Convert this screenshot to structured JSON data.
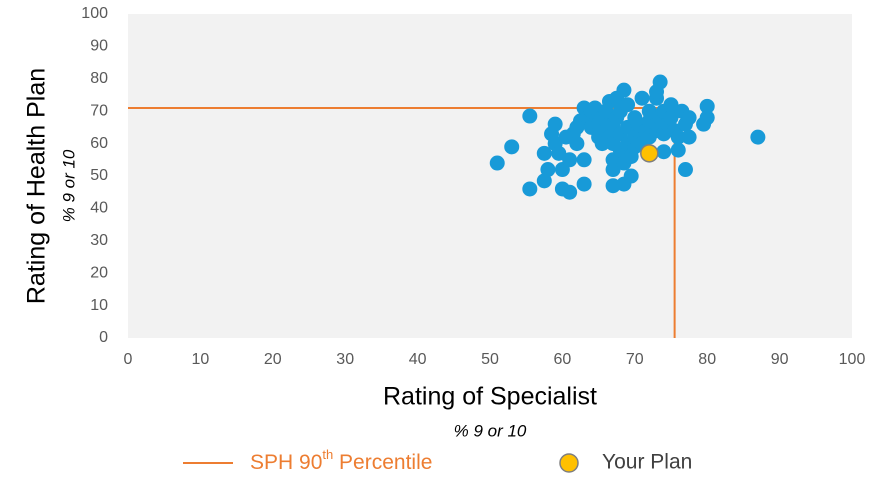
{
  "chart_data": {
    "type": "scatter",
    "x_label": "Rating of Specialist",
    "x_sublabel": "% 9 or 10",
    "y_label": "Rating of Health Plan",
    "y_sublabel": "% 9 or 10",
    "xlim": [
      0,
      100
    ],
    "xticks": [
      0,
      10,
      20,
      30,
      40,
      50,
      60,
      70,
      80,
      90,
      100
    ],
    "ylim": [
      0,
      100
    ],
    "yticks": [
      0,
      10,
      20,
      30,
      40,
      50,
      60,
      70,
      80,
      90,
      100
    ],
    "points": {
      "color": "#189ad8",
      "x": [
        51,
        53,
        55.5,
        55.5,
        57.5,
        57.5,
        58,
        58.5,
        59,
        59,
        59.5,
        60,
        60,
        60.5,
        61,
        61,
        61.5,
        62,
        62,
        62.5,
        63,
        63,
        63,
        63.5,
        64,
        64,
        64.5,
        65,
        65,
        65.5,
        65.5,
        66,
        66,
        66.5,
        66.5,
        67,
        67,
        67,
        67,
        67,
        67.5,
        67.5,
        68,
        68,
        68,
        68.5,
        68.5,
        68.5,
        69,
        69,
        69,
        69.5,
        69.5,
        70,
        70,
        70,
        70.5,
        70.5,
        71,
        71,
        71.5,
        72,
        72,
        72,
        72.5,
        73,
        73,
        73,
        73,
        73.5,
        73.5,
        74,
        74,
        74,
        74.5,
        75,
        75,
        75.5,
        76,
        76,
        76.5,
        77,
        77,
        77.5,
        77.5,
        79.5,
        80,
        80,
        87
      ],
      "y": [
        54,
        59,
        46,
        68.5,
        48.5,
        57,
        52,
        63,
        60,
        66,
        57,
        46,
        52,
        62,
        45,
        55,
        63,
        60,
        65,
        67,
        71,
        55,
        47.5,
        68,
        65,
        70,
        71,
        62,
        66,
        60,
        68,
        64,
        70,
        62,
        73,
        47,
        52,
        55,
        60,
        66,
        68,
        74,
        58,
        63,
        70,
        47.5,
        54,
        76.5,
        60,
        65,
        72,
        56,
        50,
        59,
        62,
        68,
        64,
        66,
        60,
        74,
        64,
        67,
        70,
        62,
        68,
        64,
        66,
        74,
        76,
        79,
        68,
        57.5,
        63,
        70,
        66,
        72,
        68,
        64,
        62,
        58,
        70,
        52,
        66,
        62,
        68,
        66,
        68,
        71.5,
        62
      ]
    },
    "percentile": {
      "name": "SPH 90th Percentile",
      "color": "#ed7d31",
      "x": 75.5,
      "y": 71
    },
    "your_plan": {
      "name": "Your Plan",
      "color": "#ffc000",
      "x": 72,
      "y": 57
    }
  }
}
